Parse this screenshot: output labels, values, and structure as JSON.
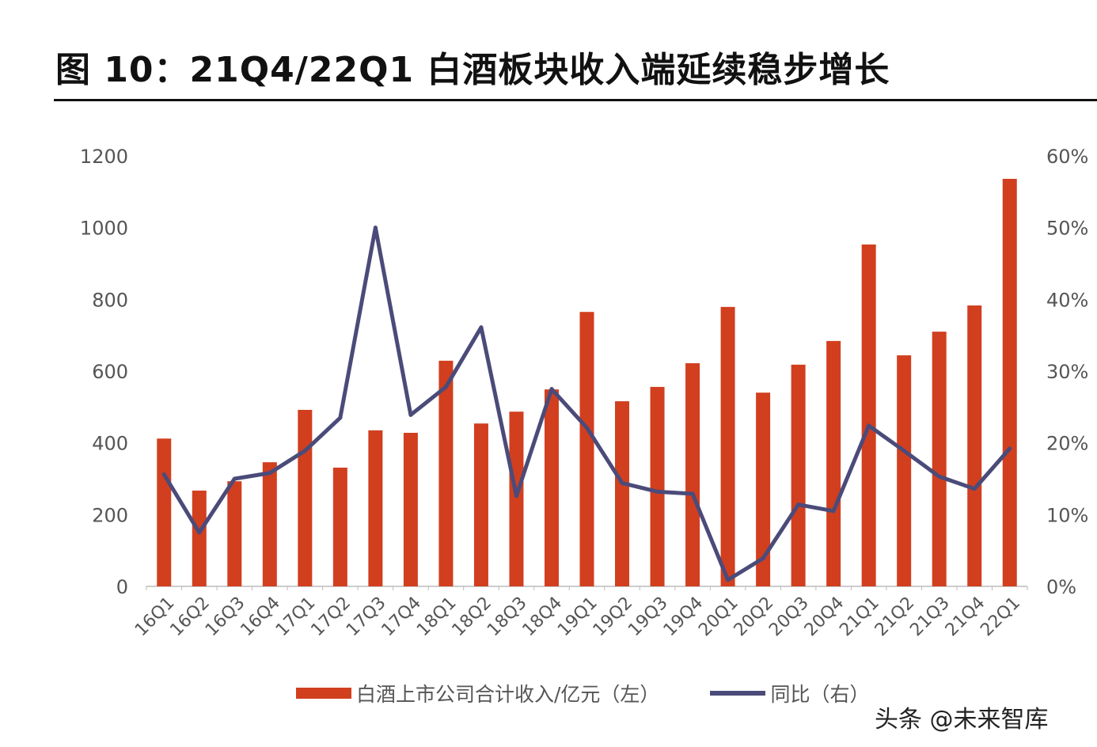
{
  "title": "图 10：21Q4/22Q1 白酒板块收入端延续稳步增长",
  "watermark": "头条 @未来智库",
  "colors": {
    "bar": "#d13f1f",
    "line": "#4b4b7a"
  },
  "chart_data": {
    "type": "bar+line",
    "title": "",
    "categories": [
      "16Q1",
      "16Q2",
      "16Q3",
      "16Q4",
      "17Q1",
      "17Q2",
      "17Q3",
      "17Q4",
      "18Q1",
      "18Q2",
      "18Q3",
      "18Q4",
      "19Q1",
      "19Q2",
      "19Q3",
      "19Q4",
      "20Q1",
      "20Q2",
      "20Q3",
      "20Q4",
      "21Q1",
      "21Q2",
      "21Q3",
      "21Q4",
      "22Q1"
    ],
    "series": [
      {
        "name": "白酒上市公司合计收入/亿元（左）",
        "type": "bar",
        "axis": "left",
        "values": [
          412,
          267,
          293,
          346,
          492,
          331,
          435,
          428,
          629,
          454,
          487,
          549,
          765,
          516,
          556,
          622,
          779,
          540,
          618,
          684,
          953,
          644,
          710,
          783,
          1136
        ]
      },
      {
        "name": "同比（右）",
        "type": "line",
        "axis": "right",
        "values": [
          15.6,
          7.5,
          15.0,
          15.8,
          18.9,
          23.5,
          50.0,
          23.9,
          27.8,
          36.1,
          12.6,
          27.5,
          22.1,
          14.4,
          13.2,
          12.9,
          0.9,
          3.9,
          11.4,
          10.5,
          22.4,
          18.9,
          15.3,
          13.6,
          19.2
        ]
      }
    ],
    "y_left": {
      "ylim": [
        0,
        1200
      ],
      "ticks": [
        "0",
        "200",
        "400",
        "600",
        "800",
        "1000",
        "1200"
      ]
    },
    "y_right": {
      "ylim": [
        0,
        60
      ],
      "ticks": [
        "0%",
        "10%",
        "20%",
        "30%",
        "40%",
        "50%",
        "60%"
      ]
    },
    "grid": false,
    "legend_position": "bottom",
    "legend": [
      "白酒上市公司合计收入/亿元（左）",
      "同比（右）"
    ]
  }
}
